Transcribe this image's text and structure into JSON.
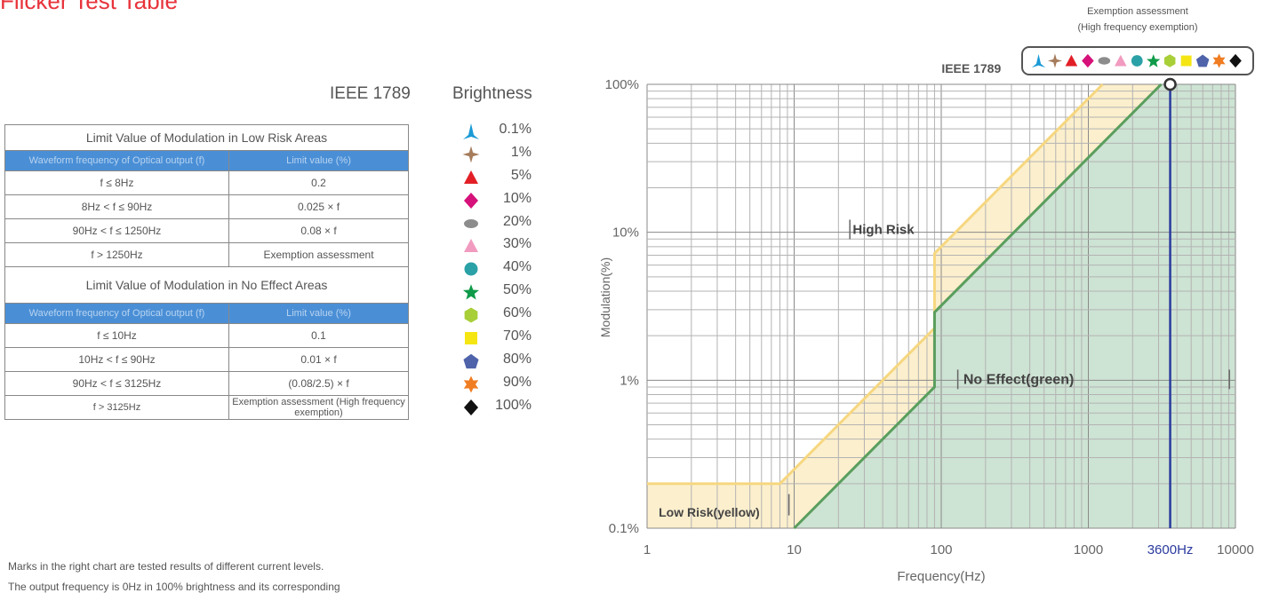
{
  "page": {
    "title": "Flicker Test Table",
    "standard_label": "IEEE 1789",
    "brightness_label": "Brightness",
    "table": {
      "low_risk": {
        "title": "Limit Value of Modulation in Low Risk Areas",
        "col1": "Waveform frequency of Optical output (f)",
        "col2": "Limit value (%)",
        "rows": [
          [
            "f ≤ 8Hz",
            "0.2"
          ],
          [
            "8Hz < f ≤ 90Hz",
            "0.025 × f"
          ],
          [
            "90Hz < f ≤ 1250Hz",
            "0.08 × f"
          ],
          [
            "f > 1250Hz",
            "Exemption assessment"
          ]
        ]
      },
      "no_effect": {
        "title": "Limit Value of Modulation in No Effect Areas",
        "col1": "Waveform frequency of Optical output (f)",
        "col2": "Limit value (%)",
        "rows": [
          [
            "f ≤ 10Hz",
            "0.1"
          ],
          [
            "10Hz < f ≤ 90Hz",
            "0.01 × f"
          ],
          [
            "90Hz < f ≤ 3125Hz",
            "(0.08/2.5) × f"
          ],
          [
            "f > 3125Hz",
            "Exemption assessment (High frequency exemption)"
          ]
        ]
      }
    },
    "legend": [
      {
        "label": "0.1%",
        "icon": "tri-spike-icon",
        "color": "#1a9ad6"
      },
      {
        "label": "1%",
        "icon": "four-point-star-icon",
        "color": "#a67c5b"
      },
      {
        "label": "5%",
        "icon": "triangle-icon",
        "color": "#e21f26"
      },
      {
        "label": "10%",
        "icon": "diamond-icon",
        "color": "#d6117a"
      },
      {
        "label": "20%",
        "icon": "ellipse-icon",
        "color": "#8c8c8c"
      },
      {
        "label": "30%",
        "icon": "triangle-icon",
        "color": "#f29bc0"
      },
      {
        "label": "40%",
        "icon": "circle-icon",
        "color": "#2aa1a6"
      },
      {
        "label": "50%",
        "icon": "five-point-star-icon",
        "color": "#0f9a49"
      },
      {
        "label": "60%",
        "icon": "hexagon-icon",
        "color": "#a8cf38"
      },
      {
        "label": "70%",
        "icon": "square-icon",
        "color": "#f5e613"
      },
      {
        "label": "80%",
        "icon": "pentagon-icon",
        "color": "#4e63a9"
      },
      {
        "label": "90%",
        "icon": "burst-star-icon",
        "color": "#f07d22"
      },
      {
        "label": "100%",
        "icon": "diamond-icon",
        "color": "#111111"
      }
    ],
    "footnote": [
      "Marks in the right chart are tested results of different current levels.",
      "The output frequency is 0Hz in 100% brightness and its corresponding"
    ]
  },
  "chart_data": {
    "type": "line",
    "title": "IEEE 1789",
    "xlabel": "Frequency(Hz)",
    "ylabel": "Modulation(%)",
    "x_scale": "log",
    "y_scale": "log",
    "xlim": [
      1,
      10000
    ],
    "ylim": [
      0.1,
      100
    ],
    "x_ticks": [
      "1",
      "10",
      "100",
      "1000",
      "3600Hz",
      "10000"
    ],
    "y_ticks": [
      "0.1%",
      "1%",
      "10%",
      "100%"
    ],
    "grid": true,
    "series": [
      {
        "name": "Low Risk(yellow)",
        "color": "#f6d77f",
        "fill": "#fcefcd",
        "points": [
          [
            1,
            0.2
          ],
          [
            8,
            0.2
          ],
          [
            90,
            2.25
          ],
          [
            90,
            7.2
          ],
          [
            1250,
            100
          ]
        ]
      },
      {
        "name": "No Effect(green)",
        "color": "#5a9e5d",
        "fill": "#cde3d3",
        "points": [
          [
            10,
            0.1
          ],
          [
            90,
            0.9
          ],
          [
            90,
            2.88
          ],
          [
            3125,
            100
          ]
        ]
      }
    ],
    "region_labels": [
      "High Risk",
      "Low Risk(yellow)",
      "No Effect(green)"
    ],
    "marker_line": {
      "x": 3600,
      "label": "3600Hz",
      "color": "#2a3a9e"
    },
    "test_point": {
      "x": 3600,
      "y": 100
    },
    "exemption_caption": [
      "Exemption assessment",
      "(High frequency exemption)"
    ]
  }
}
